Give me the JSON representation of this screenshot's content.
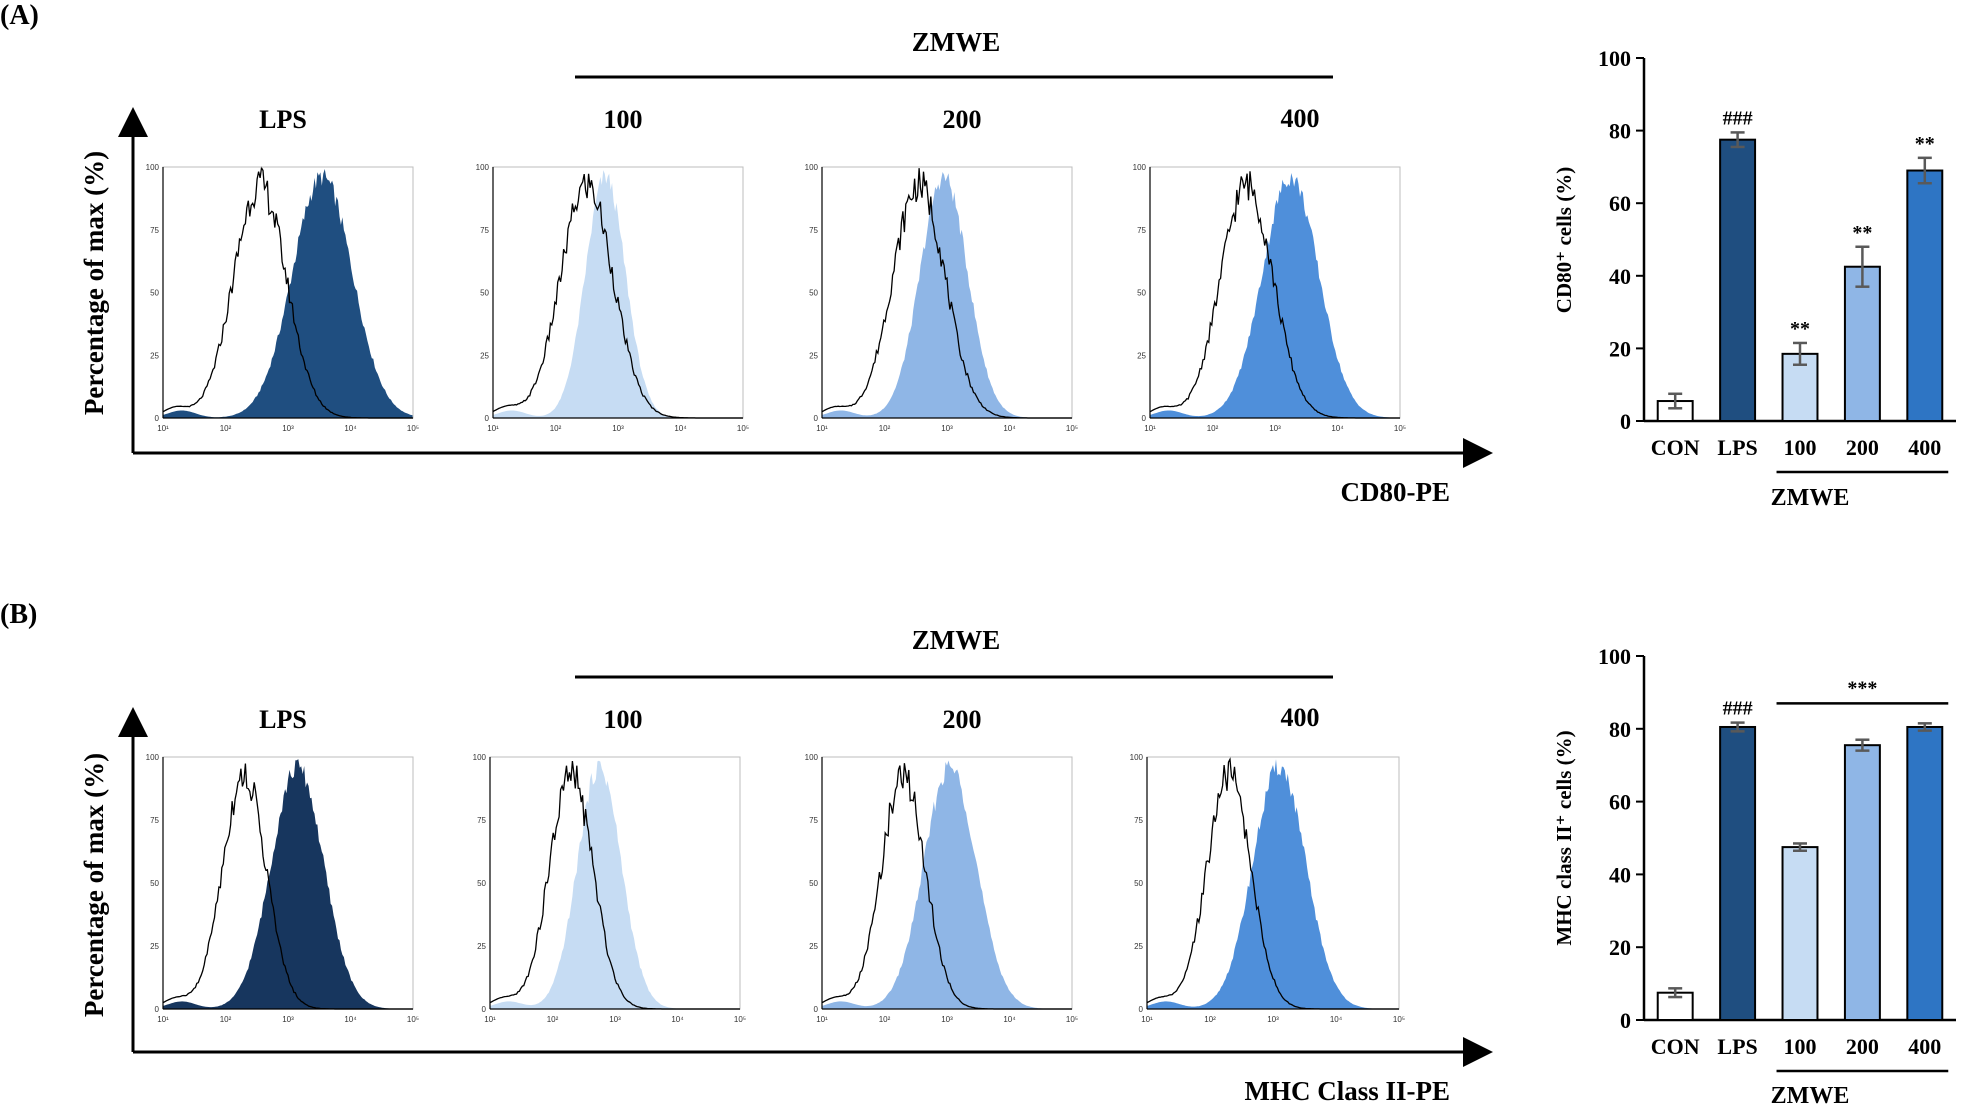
{
  "panels": [
    {
      "label": "(A)",
      "group_label": "ZMWE",
      "marker_axis_label": "CD80-PE",
      "histogram_ylabel": "Percentage of max (%)",
      "histograms": [
        {
          "title": "LPS",
          "fill_color": "#1f4e80",
          "iso_peak_log": 2.55,
          "iso_sd": 0.42,
          "stain_peak_log": 3.55,
          "stain_sd": 0.48
        },
        {
          "title": "100",
          "fill_color": "#c6dcf3",
          "iso_peak_log": 2.5,
          "iso_sd": 0.42,
          "stain_peak_log": 2.8,
          "stain_sd": 0.32
        },
        {
          "title": "200",
          "fill_color": "#8fb6e6",
          "iso_peak_log": 2.55,
          "iso_sd": 0.42,
          "stain_peak_log": 2.95,
          "stain_sd": 0.38
        },
        {
          "title": "400",
          "fill_color": "#4f8fda",
          "iso_peak_log": 2.55,
          "iso_sd": 0.42,
          "stain_peak_log": 3.25,
          "stain_sd": 0.45
        }
      ],
      "hist_yticks": [
        "0",
        "25",
        "50",
        "75",
        "100"
      ],
      "hist_xticks": [
        "10¹",
        "10²",
        "10³",
        "10⁴",
        "10⁵"
      ],
      "chart_data": {
        "type": "bar",
        "title": "",
        "xlabel": "",
        "ylabel": "CD80⁺ cells (%)",
        "categories": [
          "CON",
          "LPS",
          "100",
          "200",
          "400"
        ],
        "values": [
          5.5,
          77.5,
          18.5,
          42.5,
          69.0
        ],
        "errors": [
          2.0,
          2.0,
          3.0,
          5.5,
          3.5
        ],
        "colors": [
          "#ffffff",
          "#1f4e80",
          "#c6dcf3",
          "#8fb6e6",
          "#2e75c4"
        ],
        "significance": [
          "",
          "###",
          "**",
          "**",
          "**"
        ],
        "group_bracket": {
          "label": "ZMWE",
          "from": "100",
          "to": "400"
        },
        "yticks": [
          0,
          20,
          40,
          60,
          80,
          100
        ],
        "ylim": [
          0,
          100
        ]
      }
    },
    {
      "label": "(B)",
      "group_label": "ZMWE",
      "marker_axis_label": "MHC Class II-PE",
      "histogram_ylabel": "Percentage of max (%)",
      "histograms": [
        {
          "title": "LPS",
          "fill_color": "#17365e",
          "iso_peak_log": 2.3,
          "iso_sd": 0.35,
          "stain_peak_log": 3.15,
          "stain_sd": 0.42
        },
        {
          "title": "100",
          "fill_color": "#c6dcf3",
          "iso_peak_log": 2.3,
          "iso_sd": 0.35,
          "stain_peak_log": 2.75,
          "stain_sd": 0.35
        },
        {
          "title": "200",
          "fill_color": "#8fb6e6",
          "iso_peak_log": 2.3,
          "iso_sd": 0.35,
          "stain_peak_log": 3.05,
          "stain_sd": 0.42
        },
        {
          "title": "400",
          "fill_color": "#4f8fda",
          "iso_peak_log": 2.3,
          "iso_sd": 0.35,
          "stain_peak_log": 3.1,
          "stain_sd": 0.42
        }
      ],
      "hist_yticks": [
        "0",
        "25",
        "50",
        "75",
        "100"
      ],
      "hist_xticks": [
        "10¹",
        "10²",
        "10³",
        "10⁴",
        "10⁵"
      ],
      "chart_data": {
        "type": "bar",
        "title": "",
        "xlabel": "",
        "ylabel": "MHC class II⁺ cells (%)",
        "categories": [
          "CON",
          "LPS",
          "100",
          "200",
          "400"
        ],
        "values": [
          7.5,
          80.5,
          47.5,
          75.5,
          80.5
        ],
        "errors": [
          1.2,
          1.2,
          1.0,
          1.5,
          1.0
        ],
        "colors": [
          "#ffffff",
          "#1f4e80",
          "#c6dcf3",
          "#8fb6e6",
          "#2e75c4"
        ],
        "significance": [
          "",
          "###",
          "",
          "",
          ""
        ],
        "bracket_significance": {
          "label": "***",
          "from": "100",
          "to": "400"
        },
        "group_bracket": {
          "label": "ZMWE",
          "from": "100",
          "to": "400"
        },
        "yticks": [
          0,
          20,
          40,
          60,
          80,
          100
        ],
        "ylim": [
          0,
          100
        ]
      }
    }
  ]
}
